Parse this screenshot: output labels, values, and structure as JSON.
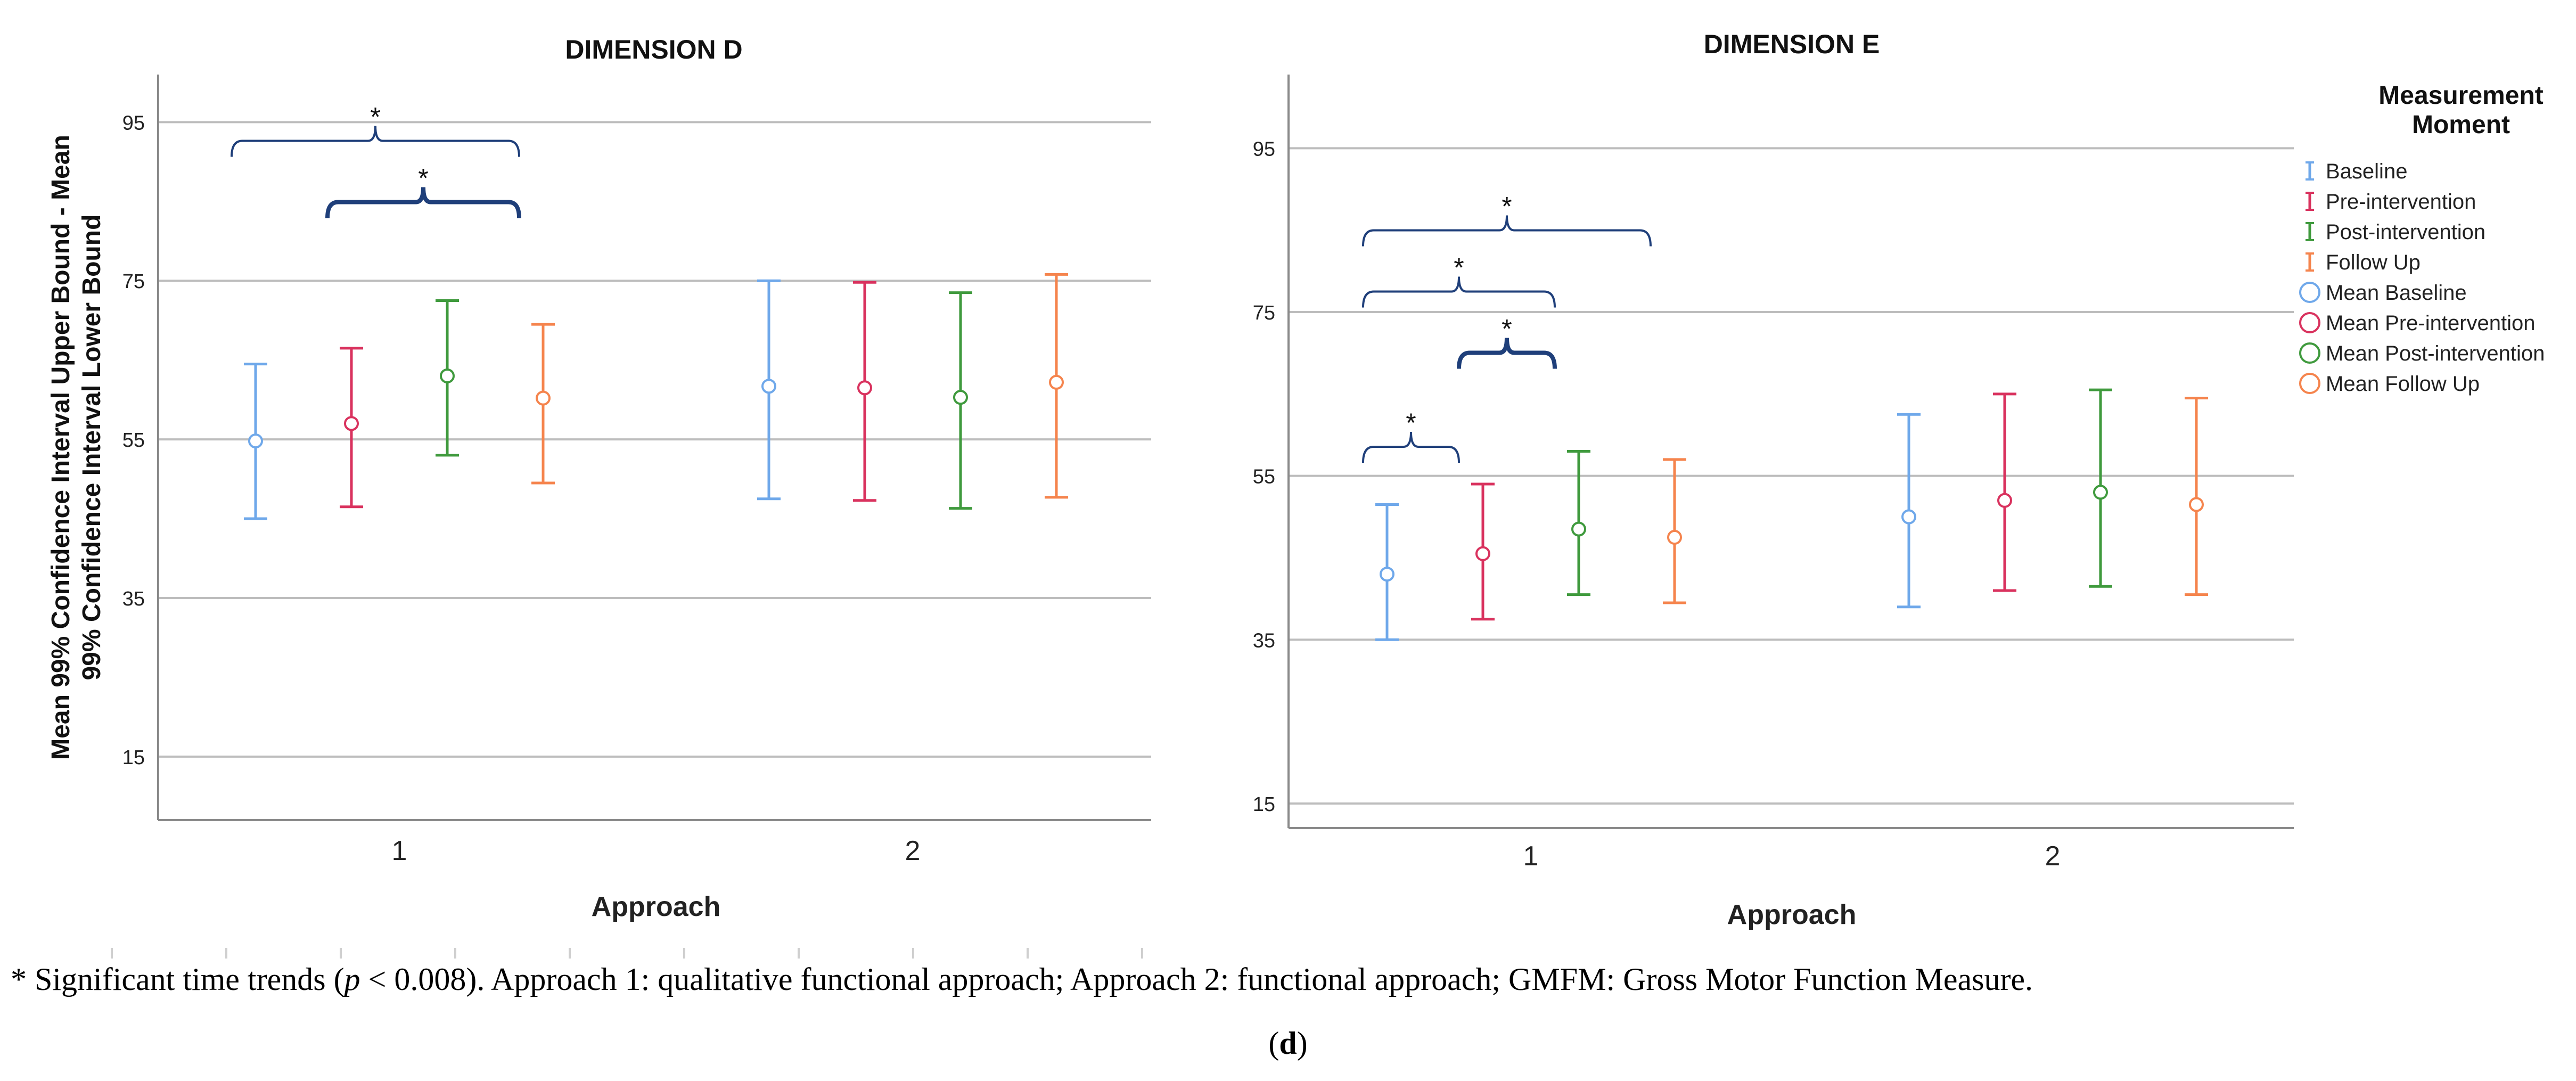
{
  "chart_data": [
    {
      "type": "errorbar",
      "title": "DIMENSION D",
      "xlabel": "Approach",
      "ylabel": [
        "Mean 99% Confidence Interval Upper Bound - Mean",
        "99% Confidence Interval Lower Bound"
      ],
      "ylim": [
        7,
        101
      ],
      "yticks": [
        15,
        35,
        55,
        75,
        95
      ],
      "categories": [
        "1",
        "2"
      ],
      "series": [
        {
          "name": "Baseline",
          "means": [
            54.8,
            61.7
          ],
          "lower": [
            45.0,
            47.5
          ],
          "upper": [
            64.5,
            75.0
          ]
        },
        {
          "name": "Pre-intervention",
          "means": [
            57.0,
            61.5
          ],
          "lower": [
            46.5,
            47.3
          ],
          "upper": [
            66.5,
            74.8
          ]
        },
        {
          "name": "Post-intervention",
          "means": [
            63.0,
            60.3
          ],
          "lower": [
            53.0,
            46.3
          ],
          "upper": [
            72.5,
            73.5
          ]
        },
        {
          "name": "Follow Up",
          "means": [
            60.2,
            62.2
          ],
          "lower": [
            49.5,
            47.7
          ],
          "upper": [
            69.5,
            75.8
          ]
        }
      ],
      "annotations": [
        {
          "label": "*",
          "group": "1",
          "from": "Baseline",
          "to": "Follow Up",
          "level": 2
        },
        {
          "label": "*",
          "group": "1",
          "from": "Pre-intervention",
          "to": "Follow Up",
          "level": 1
        }
      ]
    },
    {
      "type": "errorbar",
      "title": "DIMENSION E",
      "xlabel": "Approach",
      "ylim": [
        12,
        104
      ],
      "yticks": [
        15,
        35,
        55,
        75,
        95
      ],
      "categories": [
        "1",
        "2"
      ],
      "series": [
        {
          "name": "Baseline",
          "means": [
            43.0,
            50.0
          ],
          "lower": [
            35.0,
            39.0
          ],
          "upper": [
            51.5,
            62.5
          ]
        },
        {
          "name": "Pre-intervention",
          "means": [
            45.5,
            52.0
          ],
          "lower": [
            37.5,
            41.0
          ],
          "upper": [
            54.0,
            65.0
          ]
        },
        {
          "name": "Post-intervention",
          "means": [
            48.5,
            53.0
          ],
          "lower": [
            40.5,
            41.5
          ],
          "upper": [
            58.0,
            65.5
          ]
        },
        {
          "name": "Follow Up",
          "means": [
            47.5,
            51.5
          ],
          "lower": [
            39.5,
            40.5
          ],
          "upper": [
            57.0,
            64.5
          ]
        }
      ],
      "annotations": [
        {
          "label": "*",
          "group": "1",
          "from": "Baseline",
          "to": "Follow Up",
          "level": 3
        },
        {
          "label": "*",
          "group": "1",
          "from": "Baseline",
          "to": "Post-intervention",
          "level": 2
        },
        {
          "label": "*",
          "group": "1",
          "from": "Pre-intervention",
          "to": "Post-intervention",
          "level": 1
        },
        {
          "label": "*",
          "group": "1",
          "from": "Baseline",
          "to": "Pre-intervention",
          "level": 0
        }
      ]
    }
  ],
  "legend": {
    "title": [
      "Measurement",
      "Moment"
    ],
    "items": [
      {
        "label": "Baseline",
        "marker": "errorbar"
      },
      {
        "label": "Pre-intervention",
        "marker": "errorbar"
      },
      {
        "label": "Post-intervention",
        "marker": "errorbar"
      },
      {
        "label": "Follow Up",
        "marker": "errorbar"
      },
      {
        "label": "Mean Baseline",
        "marker": "circle"
      },
      {
        "label": "Mean Pre-intervention",
        "marker": "circle"
      },
      {
        "label": "Mean Post-intervention",
        "marker": "circle"
      },
      {
        "label": "Mean Follow Up",
        "marker": "circle"
      }
    ]
  },
  "colors": {
    "Baseline": "#6fa8ea",
    "Pre-intervention": "#d9325e",
    "Post-intervention": "#3f9a3d",
    "Follow Up": "#f5844d",
    "bracket": "#1f3f7a",
    "grid": "#bdbdbd",
    "axis": "#8a8a8a"
  },
  "caption": {
    "star": "*",
    "part1": " Significant time trends (",
    "p": "p",
    "part2": " < 0.008). Approach 1: qualitative functional approach; Approach 2: functional approach; GMFM: Gross Motor Function Measure.",
    "label_open": "(",
    "label": "d",
    "label_close": ")"
  }
}
